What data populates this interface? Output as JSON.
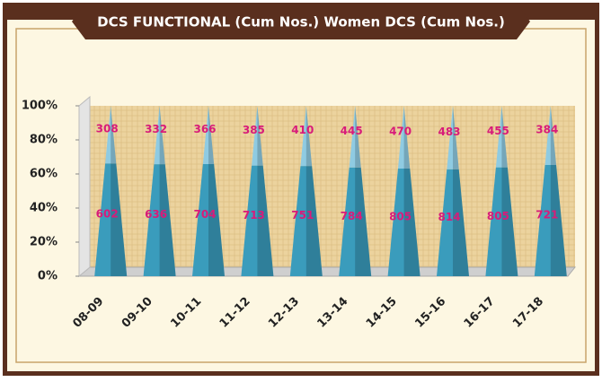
{
  "chart_data": {
    "type": "stacked_percent_pyramid",
    "title": "DCS FUNCTIONAL (Cum Nos.) Women DCS (Cum Nos.)",
    "categories": [
      "08-09",
      "09-10",
      "10-11",
      "11-12",
      "12-13",
      "13-14",
      "14-15",
      "15-16",
      "16-17",
      "17-18"
    ],
    "series": [
      {
        "color": "#3a9cbc",
        "values": [
          602,
          636,
          704,
          713,
          751,
          784,
          805,
          814,
          805,
          721
        ]
      },
      {
        "color": "#8fcbe2",
        "values": [
          308,
          332,
          366,
          385,
          410,
          445,
          470,
          483,
          455,
          384
        ]
      }
    ],
    "ylim": [
      0,
      100
    ],
    "yticks": [
      {
        "value": 0,
        "label": "0%"
      },
      {
        "value": 20,
        "label": "20%"
      },
      {
        "value": 40,
        "label": "40%"
      },
      {
        "value": 60,
        "label": "60%"
      },
      {
        "value": 80,
        "label": "80%"
      },
      {
        "value": 100,
        "label": "100%"
      }
    ]
  }
}
